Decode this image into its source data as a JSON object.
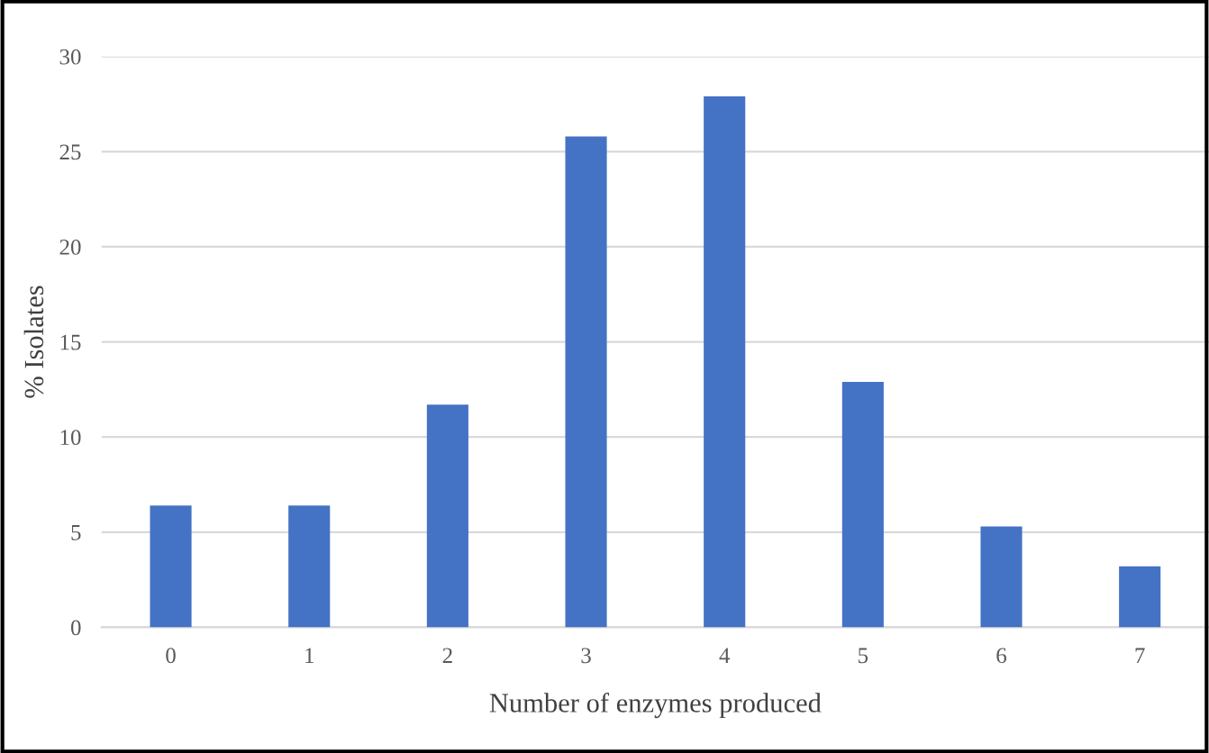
{
  "chart_data": {
    "type": "bar",
    "xlabel": "Number of enzymes produced",
    "ylabel": "% Isolates",
    "categories": [
      "0",
      "1",
      "2",
      "3",
      "4",
      "5",
      "6",
      "7"
    ],
    "values": [
      6.4,
      6.4,
      11.7,
      25.8,
      27.9,
      12.9,
      5.3,
      3.2
    ],
    "color": "#4472c4",
    "ylim": [
      0,
      30
    ],
    "yticks": [
      0,
      5,
      10,
      15,
      20,
      25,
      30
    ],
    "grid": "y"
  }
}
